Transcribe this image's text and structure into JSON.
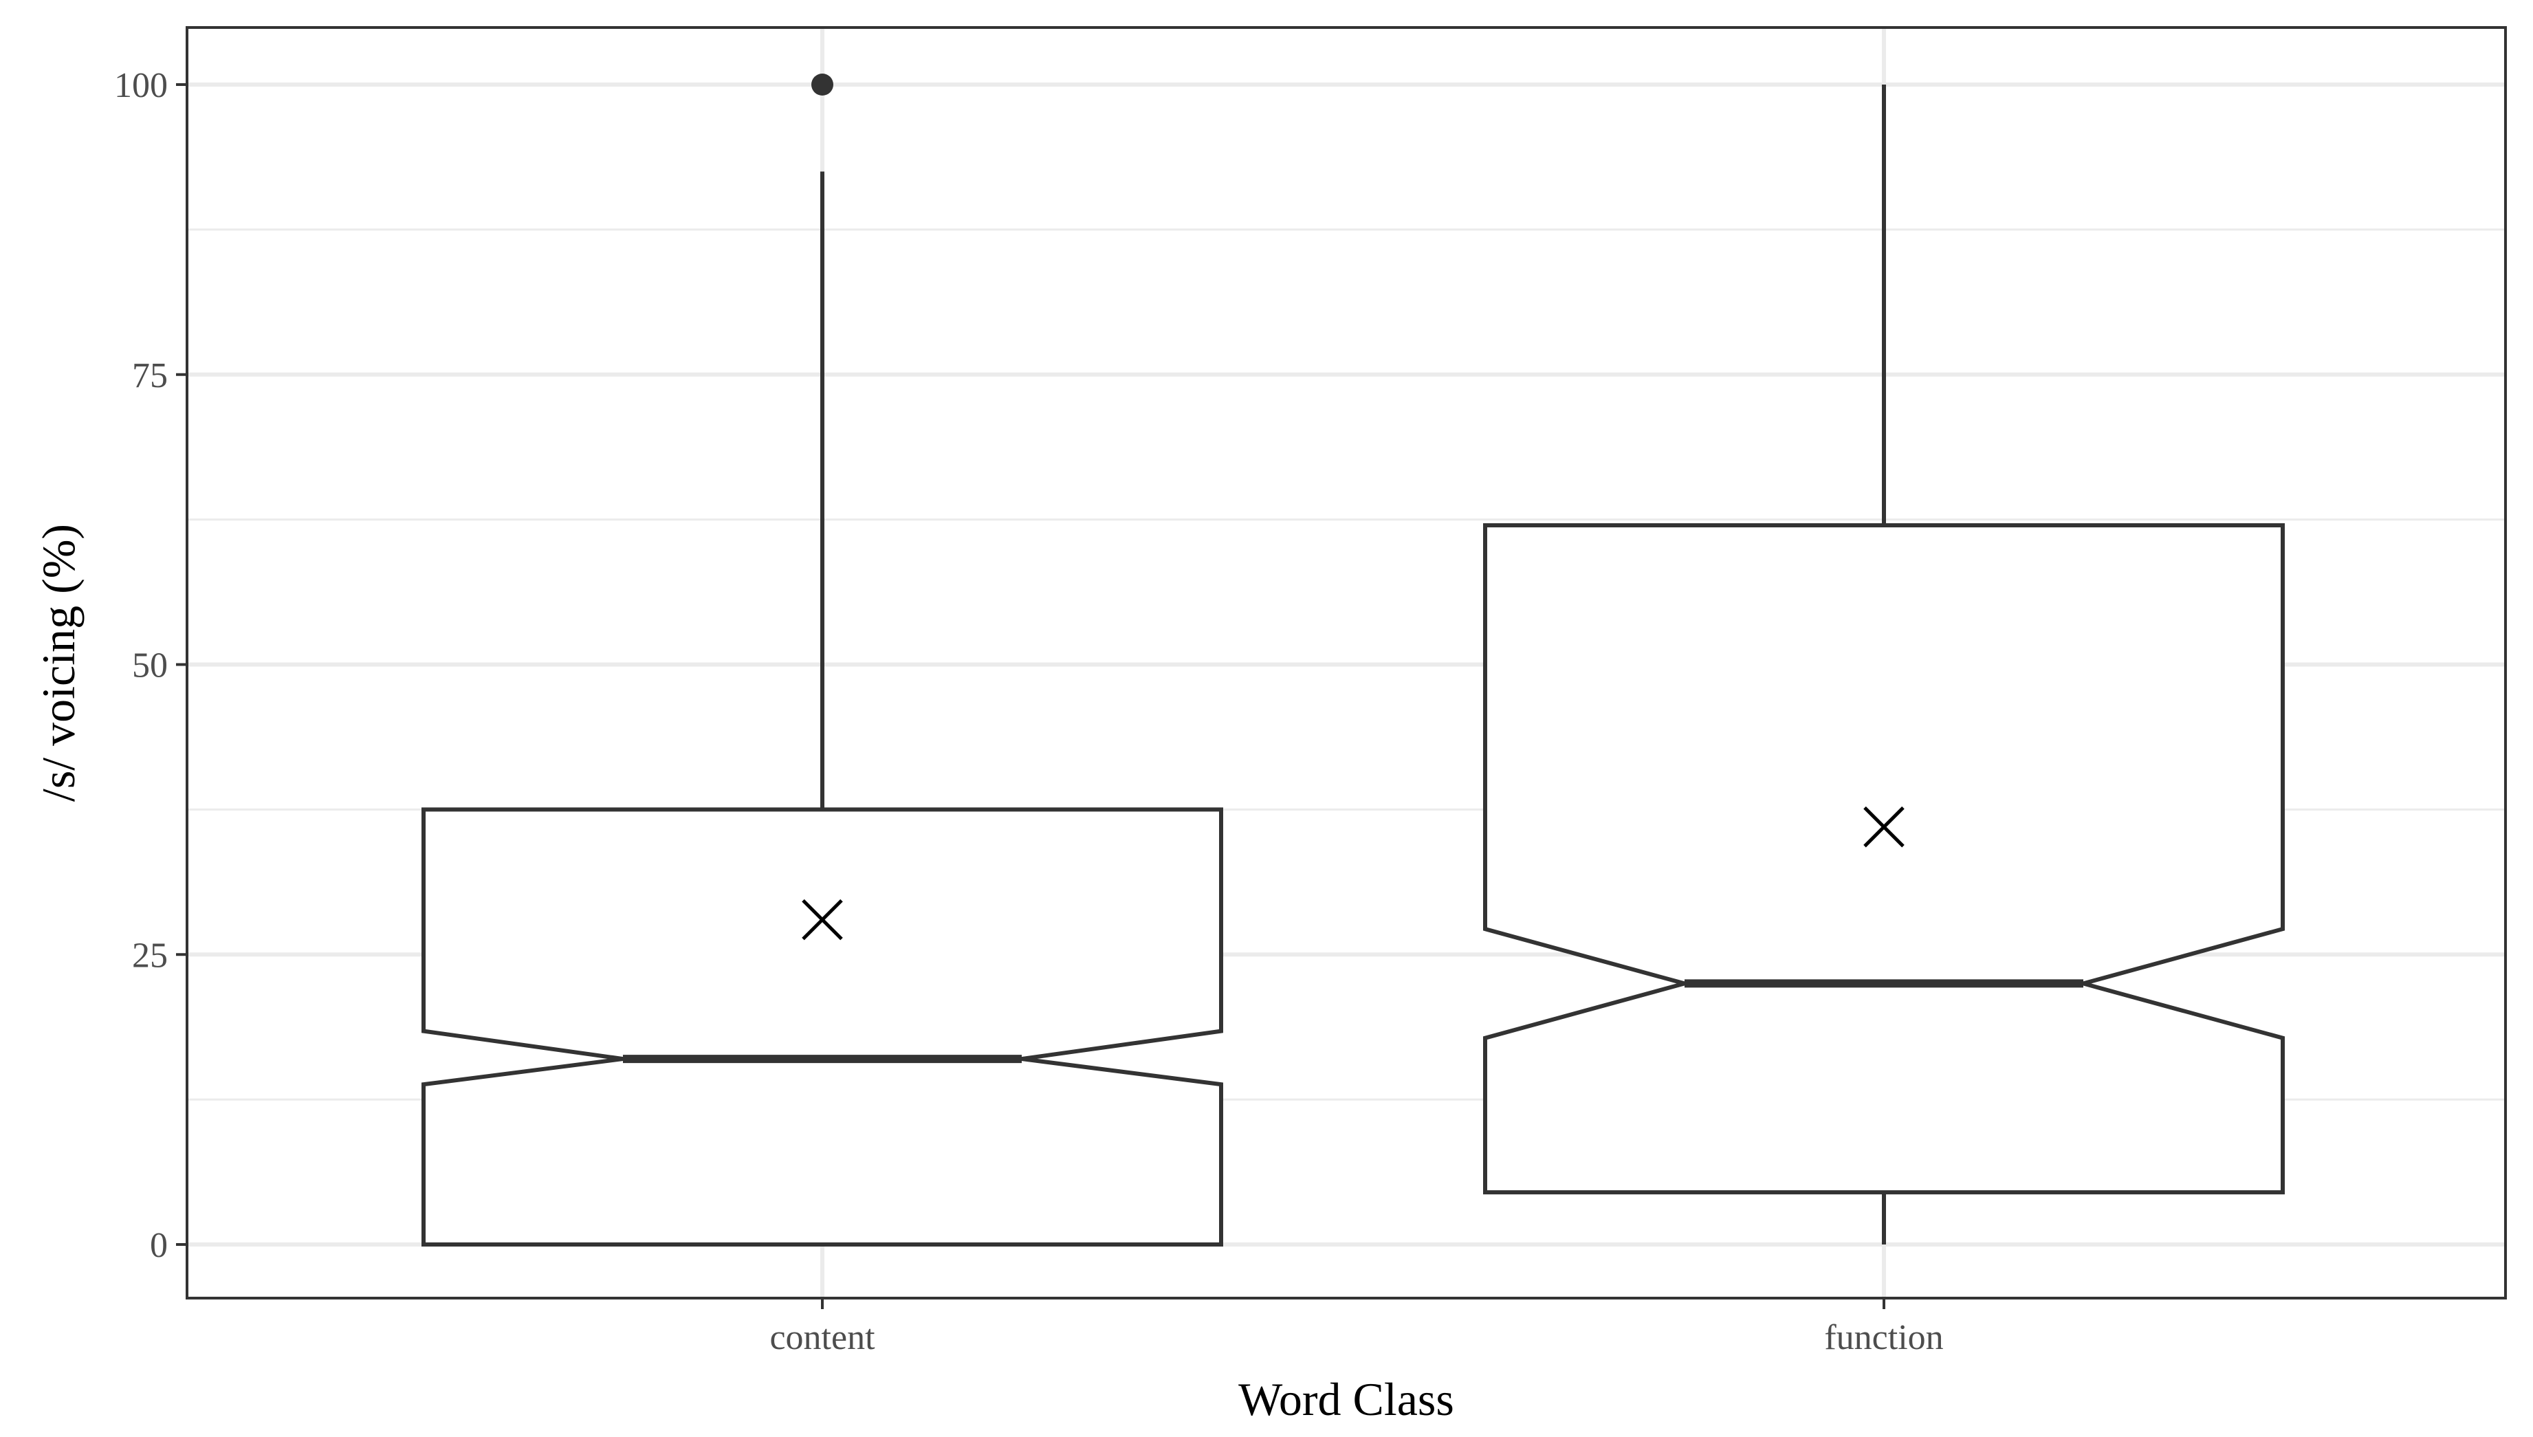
{
  "chart_data": {
    "type": "boxplot",
    "xlabel": "Word Class",
    "ylabel": "/s/ voicing (%)",
    "categories": [
      "content",
      "function"
    ],
    "ylim": [
      -5,
      105
    ],
    "yticks": [
      0,
      25,
      50,
      75,
      100
    ],
    "ytick_labels": [
      "0",
      "25",
      "50",
      "75",
      "100"
    ],
    "notched": true,
    "grid": true,
    "boxes": [
      {
        "category": "content",
        "min": 0,
        "q1": 0,
        "median": 16,
        "q3": 37.5,
        "whisker_low": 0,
        "whisker_high": 92.5,
        "notch_low": 13.8,
        "notch_high": 18.4,
        "mean": 28,
        "outliers": [
          100
        ]
      },
      {
        "category": "function",
        "min": 0,
        "q1": 4.5,
        "median": 22.5,
        "q3": 62,
        "whisker_low": 0,
        "whisker_high": 100,
        "notch_low": 17.8,
        "notch_high": 27.2,
        "mean": 36,
        "outliers": []
      }
    ],
    "colors": {
      "panel_border": "#333333",
      "grid": "#ebebeb",
      "box_stroke": "#333333",
      "mean_marker": "#000000",
      "tick_text": "#4d4d4d",
      "title_text": "#000000"
    }
  }
}
